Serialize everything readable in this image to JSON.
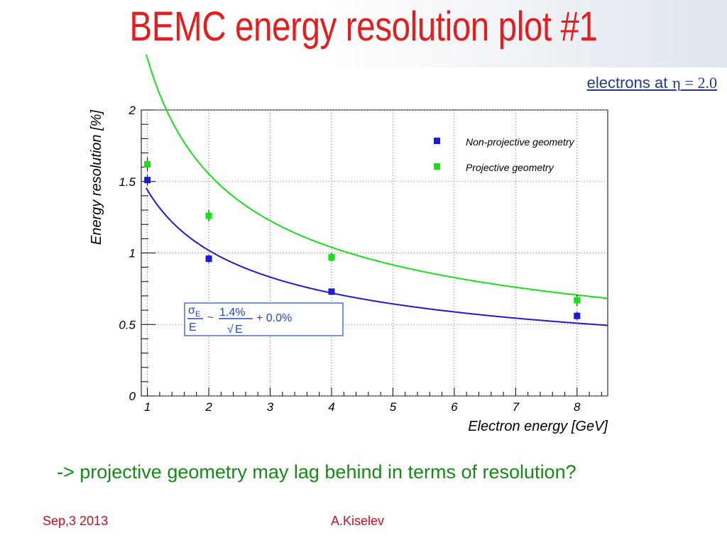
{
  "slide": {
    "title": "BEMC energy resolution plot #1",
    "subtitle_prefix": "electrons at",
    "subtitle_eta": "η",
    "subtitle_eq": "= 2.0",
    "remark": "-> projective geometry may lag behind in terms of resolution?",
    "footer_date": "Sep,3 2013",
    "footer_author": "A.Kiselev"
  },
  "colors": {
    "title": "#e41e1e",
    "non_projective": "#1a1ad8",
    "projective": "#18e018",
    "formula_box": "#2a46c8",
    "remark": "#168a16",
    "footer": "#c8101c"
  },
  "chart_data": {
    "type": "scatter",
    "xlabel": "Electron energy [GeV]",
    "ylabel": "Energy resolution [%]",
    "xlim": [
      0.9,
      8.5
    ],
    "ylim": [
      0,
      2
    ],
    "xticks": [
      "1",
      "2",
      "3",
      "4",
      "5",
      "6",
      "7",
      "8"
    ],
    "yticks": [
      "0",
      "0.5",
      "1",
      "1.5",
      "2"
    ],
    "grid": true,
    "legend_position": "top-right",
    "series": [
      {
        "name": "Non-projective geometry",
        "color": "#1a1ad8",
        "x": [
          1,
          2,
          4,
          8
        ],
        "y": [
          1.51,
          0.96,
          0.73,
          0.56
        ],
        "errors": [
          0.04,
          0.03,
          0.02,
          0.03
        ],
        "fit": {
          "a": 1.44,
          "b": 0.0
        }
      },
      {
        "name": "Projective geometry",
        "color": "#18e018",
        "x": [
          1,
          2,
          4,
          8
        ],
        "y": [
          1.62,
          1.26,
          0.97,
          0.67
        ],
        "errors": [
          0.05,
          0.04,
          0.03,
          0.04
        ],
        "fit": {
          "a": 1.8,
          "b": 0.56
        }
      }
    ],
    "annotation": {
      "sigma": "σ",
      "sub": "E",
      "denominator": "E",
      "tilde": "~",
      "numerator": "1.4%",
      "sqrt_symbol": "√",
      "sqrt_arg": "E",
      "constant": "+ 0.0%"
    }
  }
}
